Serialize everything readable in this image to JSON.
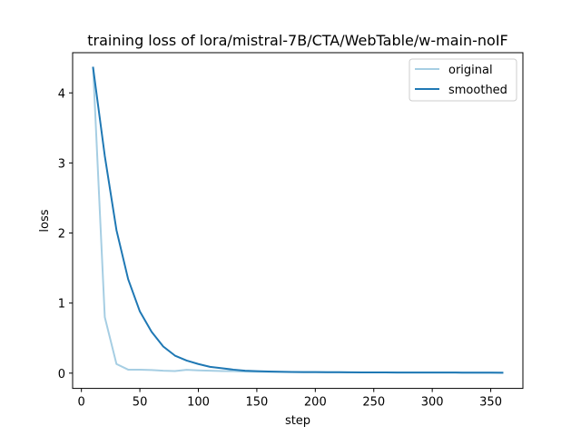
{
  "chart_data": {
    "type": "line",
    "title": "training loss of lora/mistral-7B/CTA/WebTable/w-main-noIF",
    "xlabel": "step",
    "ylabel": "loss",
    "xlim": [
      -7.5,
      377.5
    ],
    "ylim": [
      -0.2178,
      4.5738
    ],
    "xticks": [
      0,
      50,
      100,
      150,
      200,
      250,
      300,
      350
    ],
    "yticks": [
      0,
      1,
      2,
      3,
      4
    ],
    "grid": false,
    "legend_position": "top-right",
    "series": [
      {
        "name": "original",
        "color": "#a6cee3",
        "x": [
          10,
          20,
          30,
          40,
          50,
          60,
          70,
          80,
          90,
          100,
          110,
          120,
          130,
          140,
          150,
          160,
          170,
          180,
          190,
          200,
          210,
          220,
          230,
          240,
          250,
          260,
          270,
          280,
          290,
          300,
          310,
          320,
          330,
          340,
          350,
          360
        ],
        "y": [
          4.36,
          0.8,
          0.13,
          0.05,
          0.05,
          0.045,
          0.035,
          0.03,
          0.048,
          0.04,
          0.035,
          0.03,
          0.028,
          0.022,
          0.02,
          0.018,
          0.017,
          0.015,
          0.014,
          0.013,
          0.012,
          0.012,
          0.011,
          0.01,
          0.01,
          0.01,
          0.009,
          0.009,
          0.008,
          0.008,
          0.008,
          0.008,
          0.007,
          0.007,
          0.007,
          0.007
        ]
      },
      {
        "name": "smoothed",
        "color": "#1f78b4",
        "x": [
          10,
          20,
          30,
          40,
          50,
          60,
          70,
          80,
          90,
          100,
          110,
          120,
          130,
          140,
          150,
          160,
          170,
          180,
          190,
          200,
          210,
          220,
          230,
          240,
          250,
          260,
          270,
          280,
          290,
          300,
          310,
          320,
          330,
          340,
          350,
          360
        ],
        "y": [
          4.36,
          3.1,
          2.04,
          1.34,
          0.88,
          0.59,
          0.38,
          0.25,
          0.18,
          0.13,
          0.09,
          0.07,
          0.05,
          0.035,
          0.028,
          0.024,
          0.02,
          0.017,
          0.015,
          0.016,
          0.014,
          0.013,
          0.012,
          0.011,
          0.01,
          0.01,
          0.009,
          0.009,
          0.008,
          0.008,
          0.008,
          0.008,
          0.007,
          0.007,
          0.007,
          0.006
        ]
      }
    ]
  }
}
